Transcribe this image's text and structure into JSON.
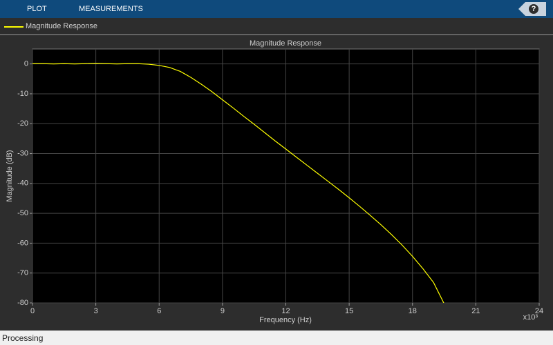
{
  "toolbar": {
    "tabs": [
      "PLOT",
      "MEASUREMENTS"
    ],
    "help": "?"
  },
  "chart_data": {
    "type": "line",
    "title": "Magnitude Response",
    "x_label": "Frequency (Hz)",
    "x_multiplier": "x10³",
    "y_label": "Magnitude (dB)",
    "x": [
      0,
      0.5,
      1,
      1.5,
      2,
      2.5,
      3,
      3.5,
      4,
      4.5,
      5,
      5.5,
      6,
      6.5,
      7,
      7.5,
      8,
      8.5,
      9,
      9.5,
      10,
      10.5,
      11,
      11.5,
      12,
      12.5,
      13,
      13.5,
      14,
      14.5,
      15,
      15.5,
      16,
      16.5,
      17,
      17.5,
      18,
      18.5,
      19,
      19.5
    ],
    "series": [
      {
        "name": "Magnitude Response",
        "color": "#ffff00",
        "values": [
          0.1,
          0.1,
          0.0,
          0.1,
          0.0,
          0.1,
          0.2,
          0.1,
          0.0,
          0.1,
          0.1,
          -0.1,
          -0.5,
          -1.2,
          -2.5,
          -4.5,
          -6.8,
          -9.3,
          -12,
          -14.7,
          -17.5,
          -20.2,
          -23,
          -25.8,
          -28.5,
          -31.2,
          -33.9,
          -36.6,
          -39.3,
          -42,
          -44.8,
          -47.7,
          -50.7,
          -53.8,
          -57.1,
          -60.6,
          -64.4,
          -68.6,
          -73.2,
          -80.3
        ]
      }
    ],
    "xlim": [
      0,
      24
    ],
    "xticks": [
      0,
      3,
      6,
      9,
      12,
      15,
      18,
      21,
      24
    ],
    "ylim": [
      -80,
      5
    ],
    "yticks": [
      -80,
      -70,
      -60,
      -50,
      -40,
      -30,
      -20,
      -10,
      0
    ],
    "grid": true
  },
  "status": "Processing"
}
